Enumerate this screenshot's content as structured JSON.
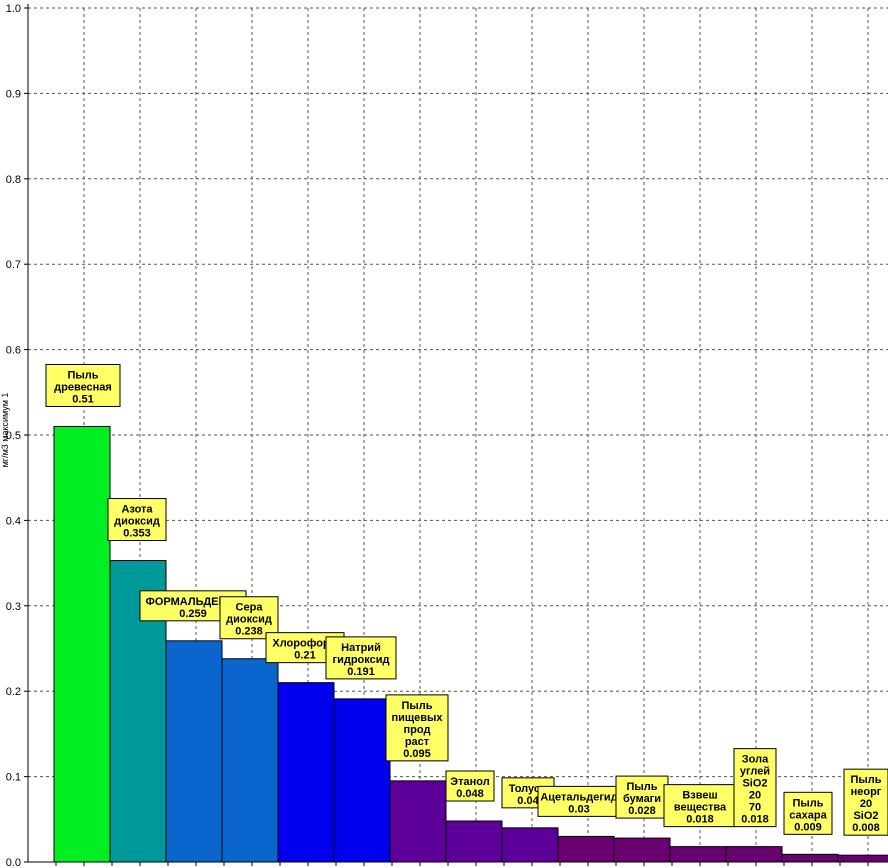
{
  "chart_data": {
    "type": "bar",
    "title": "",
    "ylabel": "мг/м3  максимум 1",
    "xlabel": "",
    "ylim": [
      0,
      1.0
    ],
    "yticks": [
      "0.0",
      "0.1",
      "0.2",
      "0.3",
      "0.4",
      "0.5",
      "0.6",
      "0.7",
      "0.8",
      "0.9",
      "1.0"
    ],
    "grid": true,
    "bars": [
      {
        "label": [
          "Пыль",
          "древесная",
          "0.51"
        ],
        "value": 0.51,
        "color": "#00ee22"
      },
      {
        "label": [
          "Азота",
          "диоксид",
          "0.353"
        ],
        "value": 0.353,
        "color": "#009999"
      },
      {
        "label": [
          "ФОРМАЛЬДЕГИД",
          "0.259"
        ],
        "value": 0.259,
        "color": "#0a66cc"
      },
      {
        "label": [
          "Сера",
          "диоксид",
          "0.238"
        ],
        "value": 0.238,
        "color": "#0a66cc"
      },
      {
        "label": [
          "Хлороформ",
          "0.21"
        ],
        "value": 0.21,
        "color": "#0000ee"
      },
      {
        "label": [
          "Натрий",
          "гидроксид",
          "0.191"
        ],
        "value": 0.191,
        "color": "#0000ee"
      },
      {
        "label": [
          "Пыль",
          "пищевых",
          "прод",
          "раст",
          "0.095"
        ],
        "value": 0.095,
        "color": "#5c0099"
      },
      {
        "label": [
          "Этанол",
          "0.048"
        ],
        "value": 0.048,
        "color": "#5c0099"
      },
      {
        "label": [
          "Толуол",
          "0.04"
        ],
        "value": 0.04,
        "color": "#5c0099"
      },
      {
        "label": [
          "Ацетальдегид",
          "0.03"
        ],
        "value": 0.03,
        "color": "#6a0070"
      },
      {
        "label": [
          "Пыль",
          "бумаги",
          "0.028"
        ],
        "value": 0.028,
        "color": "#6a0070"
      },
      {
        "label": [
          "Взвеш",
          "вещества",
          "0.018"
        ],
        "value": 0.018,
        "color": "#6a0070"
      },
      {
        "label": [
          "Зола",
          "углей",
          "SiO2",
          "20",
          "70",
          "0.018"
        ],
        "value": 0.018,
        "color": "#6a0070"
      },
      {
        "label": [
          "Пыль",
          "сахара",
          "0.009"
        ],
        "value": 0.009,
        "color": "#6a0070"
      },
      {
        "label": [
          "Пыль",
          "неорг",
          "20",
          "SiO2",
          "0.008"
        ],
        "value": 0.008,
        "color": "#6a0070"
      }
    ],
    "colors": {
      "grid": "#555555",
      "label_bg": "#ffff66",
      "axis": "#000000"
    }
  }
}
